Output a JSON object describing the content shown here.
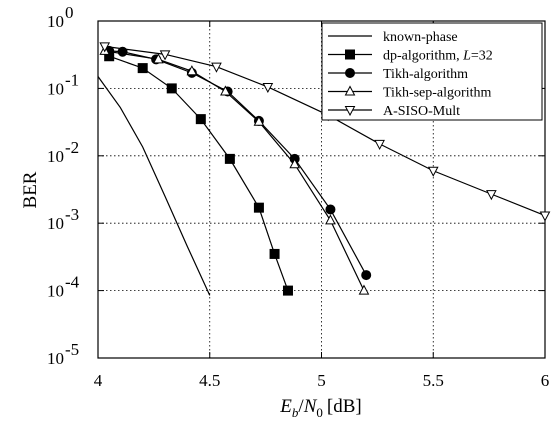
{
  "chart_data": {
    "type": "line",
    "xlabel": "",
    "ylabel": "BER",
    "xlim": [
      4,
      6
    ],
    "ylim": [
      1e-05,
      1
    ],
    "yscale": "log",
    "grid": true,
    "legend_position": "top-right",
    "x_tick_labels": [
      "4",
      "4.5",
      "5",
      "5.5",
      "6"
    ],
    "x_ticks": [
      4,
      4.5,
      5,
      5.5,
      6
    ],
    "y_ticks": [
      1,
      0.1,
      0.01,
      0.001,
      0.0001,
      1e-05
    ],
    "y_tick_labels": [
      {
        "base": "10",
        "exp": "0"
      },
      {
        "base": "10",
        "exp": "-1"
      },
      {
        "base": "10",
        "exp": "-2"
      },
      {
        "base": "10",
        "exp": "-3"
      },
      {
        "base": "10",
        "exp": "-4"
      },
      {
        "base": "10",
        "exp": "-5"
      }
    ],
    "xlabel_parts": {
      "E": "E",
      "b": "b",
      "slash": "/",
      "N": "N",
      "zero": "0",
      "unit": "[dB]"
    },
    "series": [
      {
        "name": "known-phase",
        "marker": "none",
        "x": [
          4.0,
          4.1,
          4.2,
          4.3,
          4.4,
          4.5
        ],
        "y": [
          0.15,
          0.052,
          0.0135,
          0.0025,
          0.00045,
          8.5e-05
        ]
      },
      {
        "name": "dp-algorithm, L=32",
        "name_parts": {
          "text": "dp-algorithm, ",
          "italic": "L",
          "suffix": "=32"
        },
        "marker": "square",
        "x": [
          4.05,
          4.2,
          4.33,
          4.46,
          4.59,
          4.72,
          4.79,
          4.85
        ],
        "y": [
          0.3,
          0.2,
          0.1,
          0.035,
          0.009,
          0.0017,
          0.00035,
          0.0001
        ]
      },
      {
        "name": "Tikh-algorithm",
        "marker": "circle",
        "x": [
          4.05,
          4.11,
          4.26,
          4.42,
          4.58,
          4.72,
          4.88,
          5.04,
          5.2
        ],
        "y": [
          0.36,
          0.35,
          0.27,
          0.17,
          0.09,
          0.033,
          0.009,
          0.0016,
          0.00017
        ]
      },
      {
        "name": "Tikh-sep-algorithm",
        "marker": "triangle-up",
        "x": [
          4.03,
          4.27,
          4.42,
          4.57,
          4.72,
          4.88,
          5.04,
          5.19
        ],
        "y": [
          0.36,
          0.27,
          0.18,
          0.09,
          0.032,
          0.0075,
          0.0011,
          0.0001
        ]
      },
      {
        "name": "A-SISO-Mult",
        "marker": "triangle-down",
        "x": [
          4.03,
          4.3,
          4.53,
          4.76,
          5.03,
          5.26,
          5.5,
          5.76,
          6.0
        ],
        "y": [
          0.42,
          0.32,
          0.21,
          0.105,
          0.04,
          0.015,
          0.006,
          0.0027,
          0.0013
        ]
      }
    ]
  }
}
